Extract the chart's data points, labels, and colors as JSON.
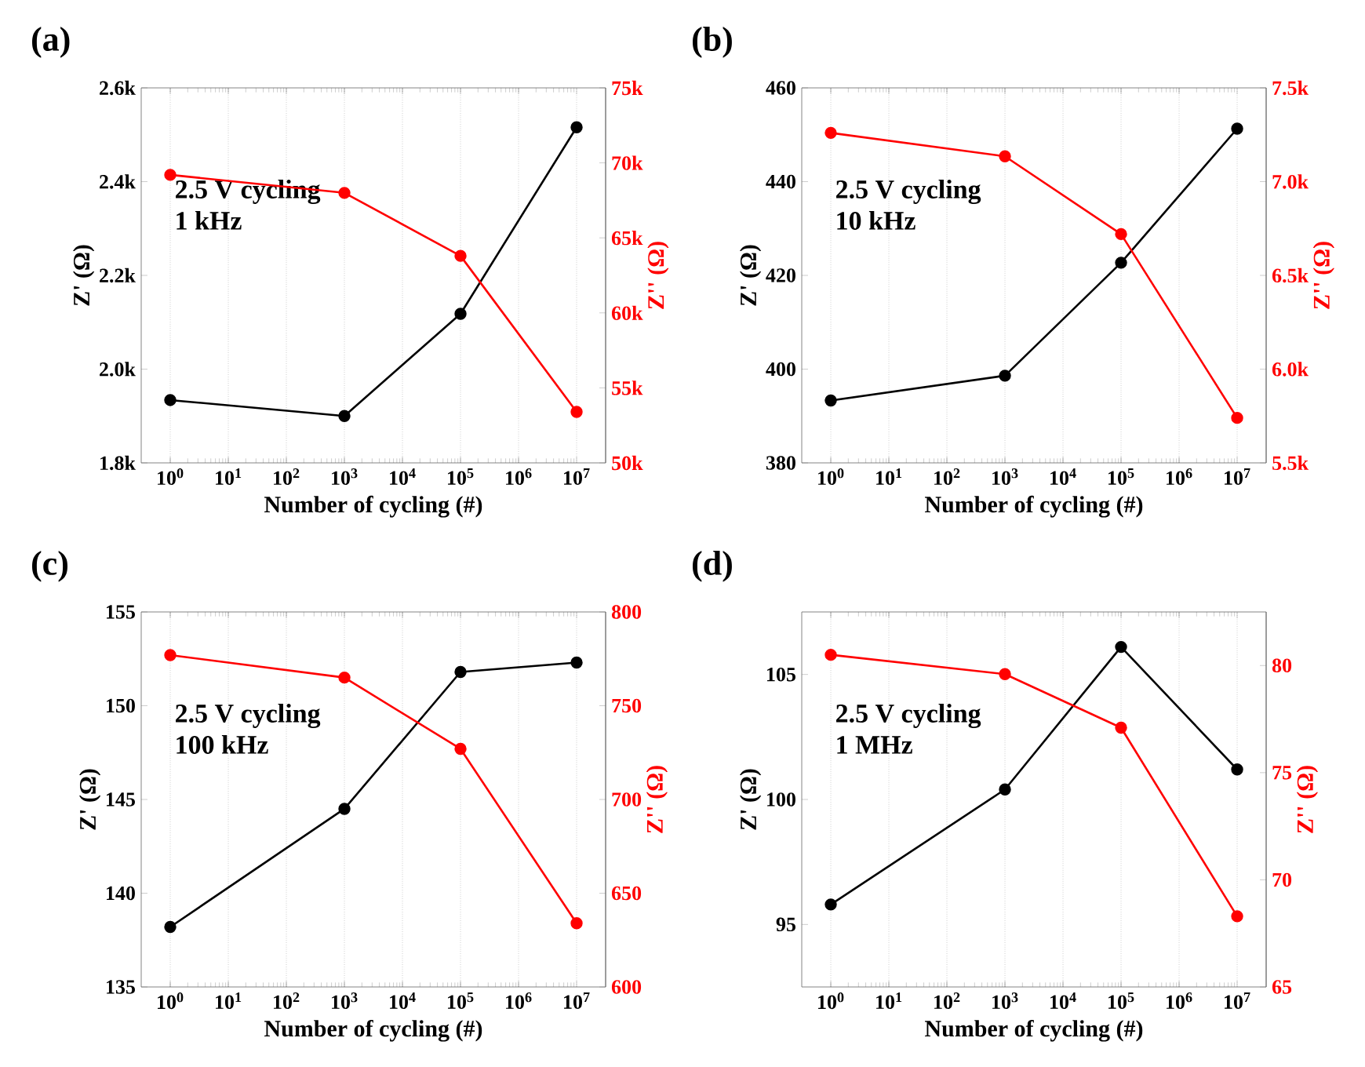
{
  "chart_data": [
    {
      "type": "line",
      "title": "(a)",
      "xlabel": "Number of cycling (#)",
      "ylabel": "Z' (Ω)",
      "y2label": "Z'' (Ω)",
      "annotations": [
        "2.5 V cycling",
        "1 kHz"
      ],
      "log": "x",
      "grid": "x",
      "marker": "circle",
      "x": [
        1,
        1000,
        100000,
        10000000
      ],
      "xlim": [
        0.316,
        31600000
      ],
      "xticks": [
        {
          "value": 1,
          "label": "10$^{0}$"
        },
        {
          "value": 10,
          "label": "10$^{1}$"
        },
        {
          "value": 100,
          "label": "10$^{2}$"
        },
        {
          "value": 1000,
          "label": "10$^{3}$"
        },
        {
          "value": 10000,
          "label": "10$^{4}$"
        },
        {
          "value": 100000,
          "label": "10$^{5}$"
        },
        {
          "value": 1000000,
          "label": "10$^{6}$"
        },
        {
          "value": 10000000,
          "label": "10$^{7}$"
        }
      ],
      "ylim": [
        1800,
        2600
      ],
      "yticks": [
        {
          "value": 1800,
          "label": "1.8k"
        },
        {
          "value": 2000,
          "label": "2.0k"
        },
        {
          "value": 2200,
          "label": "2.2k"
        },
        {
          "value": 2400,
          "label": "2.4k"
        },
        {
          "value": 2600,
          "label": "2.6k"
        }
      ],
      "y2lim": [
        50000,
        75000
      ],
      "y2ticks": [
        {
          "value": 50000,
          "label": "50k"
        },
        {
          "value": 55000,
          "label": "55k"
        },
        {
          "value": 60000,
          "label": "60k"
        },
        {
          "value": 65000,
          "label": "65k"
        },
        {
          "value": 70000,
          "label": "70k"
        },
        {
          "value": 75000,
          "label": "75k"
        }
      ],
      "series": [
        {
          "color": "#000000",
          "values": [
            1934,
            1900,
            2118,
            2516
          ]
        },
        {
          "color": "#ff0000",
          "axis": "y2",
          "values": [
            69200,
            68000,
            63800,
            53400
          ]
        }
      ]
    },
    {
      "type": "line",
      "title": "(b)",
      "xlabel": "Number of cycling (#)",
      "ylabel": "Z' (Ω)",
      "y2label": "Z'' (Ω)",
      "annotations": [
        "2.5 V cycling",
        "10 kHz"
      ],
      "log": "x",
      "grid": "x",
      "marker": "circle",
      "x": [
        1,
        1000,
        100000,
        10000000
      ],
      "xlim": [
        0.316,
        31600000
      ],
      "xticks": [
        {
          "value": 1,
          "label": "10$^{0}$"
        },
        {
          "value": 10,
          "label": "10$^{1}$"
        },
        {
          "value": 100,
          "label": "10$^{2}$"
        },
        {
          "value": 1000,
          "label": "10$^{3}$"
        },
        {
          "value": 10000,
          "label": "10$^{4}$"
        },
        {
          "value": 100000,
          "label": "10$^{5}$"
        },
        {
          "value": 1000000,
          "label": "10$^{6}$"
        },
        {
          "value": 10000000,
          "label": "10$^{7}$"
        }
      ],
      "ylim": [
        380,
        460
      ],
      "yticks": [
        380,
        400,
        420,
        440,
        460
      ],
      "y2lim": [
        5500,
        7500
      ],
      "y2ticks": [
        {
          "value": 5500,
          "label": "5.5k"
        },
        {
          "value": 6000,
          "label": "6.0k"
        },
        {
          "value": 6500,
          "label": "6.5k"
        },
        {
          "value": 7000,
          "label": "7.0k"
        },
        {
          "value": 7500,
          "label": "7.5k"
        }
      ],
      "series": [
        {
          "color": "#000000",
          "values": [
            393.3,
            398.6,
            422.7,
            451.3
          ]
        },
        {
          "color": "#ff0000",
          "axis": "y2",
          "values": [
            7260,
            7135,
            6720,
            5740
          ]
        }
      ]
    },
    {
      "type": "line",
      "title": "(c)",
      "xlabel": "Number of cycling (#)",
      "ylabel": "Z' (Ω)",
      "y2label": "Z'' (Ω)",
      "annotations": [
        "2.5 V cycling",
        "100 kHz"
      ],
      "log": "x",
      "grid": "x",
      "marker": "circle",
      "x": [
        1,
        1000,
        100000,
        10000000
      ],
      "xlim": [
        0.316,
        31600000
      ],
      "xticks": [
        {
          "value": 1,
          "label": "10$^{0}$"
        },
        {
          "value": 10,
          "label": "10$^{1}$"
        },
        {
          "value": 100,
          "label": "10$^{2}$"
        },
        {
          "value": 1000,
          "label": "10$^{3}$"
        },
        {
          "value": 10000,
          "label": "10$^{4}$"
        },
        {
          "value": 100000,
          "label": "10$^{5}$"
        },
        {
          "value": 1000000,
          "label": "10$^{6}$"
        },
        {
          "value": 10000000,
          "label": "10$^{7}$"
        }
      ],
      "ylim": [
        135,
        155
      ],
      "yticks": [
        135,
        140,
        145,
        150,
        155
      ],
      "y2lim": [
        600,
        800
      ],
      "y2ticks": [
        600,
        650,
        700,
        750,
        800
      ],
      "series": [
        {
          "color": "#000000",
          "values": [
            138.2,
            144.5,
            151.8,
            152.3
          ]
        },
        {
          "color": "#ff0000",
          "axis": "y2",
          "values": [
            777,
            765,
            727,
            634
          ]
        }
      ]
    },
    {
      "type": "line",
      "title": "(d)",
      "xlabel": "Number of cycling (#)",
      "ylabel": "Z' (Ω)",
      "y2label": "Z'' (Ω)",
      "annotations": [
        "2.5 V cycling",
        "1 MHz"
      ],
      "log": "x",
      "grid": "x",
      "marker": "circle",
      "x": [
        1,
        1000,
        100000,
        10000000
      ],
      "xlim": [
        0.316,
        31600000
      ],
      "xticks": [
        {
          "value": 1,
          "label": "10$^{0}$"
        },
        {
          "value": 10,
          "label": "10$^{1}$"
        },
        {
          "value": 100,
          "label": "10$^{2}$"
        },
        {
          "value": 1000,
          "label": "10$^{3}$"
        },
        {
          "value": 10000,
          "label": "10$^{4}$"
        },
        {
          "value": 100000,
          "label": "10$^{5}$"
        },
        {
          "value": 1000000,
          "label": "10$^{6}$"
        },
        {
          "value": 10000000,
          "label": "10$^{7}$"
        }
      ],
      "ylim": [
        92.5,
        107.5
      ],
      "yticks": [
        95,
        100,
        105
      ],
      "y2lim": [
        65,
        82.5
      ],
      "y2ticks": [
        65,
        70,
        75,
        80
      ],
      "series": [
        {
          "color": "#000000",
          "values": [
            95.8,
            100.4,
            106.1,
            101.2
          ]
        },
        {
          "color": "#ff0000",
          "axis": "y2",
          "values": [
            80.5,
            79.6,
            77.1,
            68.3
          ]
        }
      ]
    }
  ]
}
